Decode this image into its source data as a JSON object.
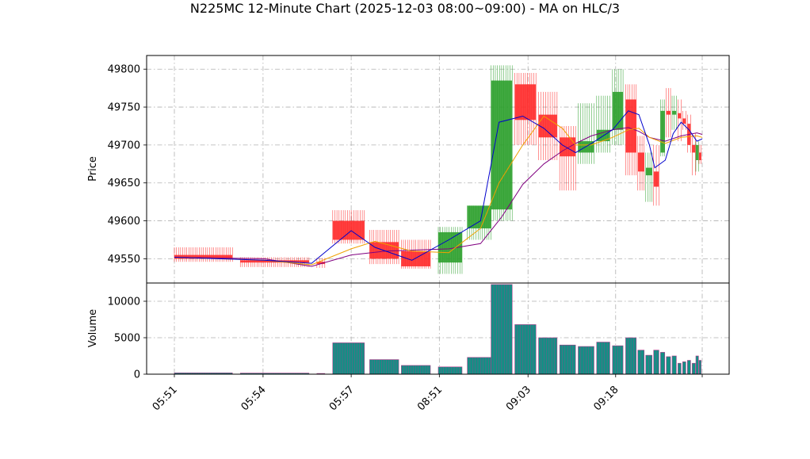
{
  "chart_data": {
    "type": "candlestick",
    "title": "N225MC 12-Minute Chart (2025-12-03 08:00~09:00) - MA on HLC/3",
    "price_panel": {
      "ylabel": "Price",
      "yticks": [
        49550,
        49600,
        49650,
        49700,
        49750,
        49800
      ],
      "ylim": [
        49518,
        49818
      ],
      "grid": true
    },
    "volume_panel": {
      "ylabel": "Volume",
      "yticks": [
        0,
        5000,
        10000
      ],
      "ylim": [
        0,
        12500
      ],
      "grid": true
    },
    "xaxis": {
      "ticks": [
        "05:51",
        "05:54",
        "05:57",
        "08:51",
        "09:03",
        "09:18",
        ""
      ]
    },
    "colors": {
      "up": "#2ca02c",
      "down": "#ff2a2a",
      "volume": "#138f85",
      "volume_edge": "#b03b8a",
      "ma_fast": "#0000cc",
      "ma_mid": "#f0a000",
      "ma_slow": "#800080"
    },
    "candles": [
      {
        "x": 0.0,
        "w": 0.11,
        "o": 49555,
        "h": 49565,
        "l": 49546,
        "c": 49550,
        "v": 180
      },
      {
        "x": 0.125,
        "w": 0.13,
        "o": 49548,
        "h": 49552,
        "l": 49539,
        "c": 49545,
        "v": 150
      },
      {
        "x": 0.27,
        "w": 0.015,
        "o": 49546,
        "h": 49551,
        "l": 49538,
        "c": 49543,
        "v": 100
      },
      {
        "x": 0.3,
        "w": 0.06,
        "o": 49600,
        "h": 49614,
        "l": 49570,
        "c": 49575,
        "v": 4300
      },
      {
        "x": 0.37,
        "w": 0.055,
        "o": 49572,
        "h": 49588,
        "l": 49543,
        "c": 49550,
        "v": 2000
      },
      {
        "x": 0.43,
        "w": 0.055,
        "o": 49560,
        "h": 49575,
        "l": 49537,
        "c": 49540,
        "v": 1200
      },
      {
        "x": 0.5,
        "w": 0.045,
        "o": 49545,
        "h": 49592,
        "l": 49530,
        "c": 49585,
        "v": 1000
      },
      {
        "x": 0.555,
        "w": 0.045,
        "o": 49590,
        "h": 49620,
        "l": 49575,
        "c": 49620,
        "v": 2300
      },
      {
        "x": 0.6,
        "w": 0.04,
        "o": 49615,
        "h": 49805,
        "l": 49600,
        "c": 49785,
        "v": 12300
      },
      {
        "x": 0.645,
        "w": 0.04,
        "o": 49780,
        "h": 49795,
        "l": 49700,
        "c": 49733,
        "v": 6800
      },
      {
        "x": 0.69,
        "w": 0.035,
        "o": 49740,
        "h": 49770,
        "l": 49680,
        "c": 49710,
        "v": 5000
      },
      {
        "x": 0.73,
        "w": 0.03,
        "o": 49710,
        "h": 49725,
        "l": 49640,
        "c": 49685,
        "v": 4000
      },
      {
        "x": 0.765,
        "w": 0.03,
        "o": 49690,
        "h": 49755,
        "l": 49675,
        "c": 49705,
        "v": 3800
      },
      {
        "x": 0.8,
        "w": 0.025,
        "o": 49705,
        "h": 49765,
        "l": 49690,
        "c": 49720,
        "v": 4400
      },
      {
        "x": 0.83,
        "w": 0.02,
        "o": 49720,
        "h": 49800,
        "l": 49700,
        "c": 49770,
        "v": 3900
      },
      {
        "x": 0.855,
        "w": 0.02,
        "o": 49760,
        "h": 49780,
        "l": 49660,
        "c": 49690,
        "v": 5000
      },
      {
        "x": 0.878,
        "w": 0.012,
        "o": 49690,
        "h": 49712,
        "l": 49640,
        "c": 49665,
        "v": 3300
      },
      {
        "x": 0.893,
        "w": 0.012,
        "o": 49660,
        "h": 49690,
        "l": 49625,
        "c": 49670,
        "v": 2600
      },
      {
        "x": 0.908,
        "w": 0.01,
        "o": 49665,
        "h": 49700,
        "l": 49620,
        "c": 49645,
        "v": 3300
      },
      {
        "x": 0.921,
        "w": 0.008,
        "o": 49690,
        "h": 49760,
        "l": 49685,
        "c": 49745,
        "v": 3000
      },
      {
        "x": 0.932,
        "w": 0.008,
        "o": 49745,
        "h": 49775,
        "l": 49710,
        "c": 49740,
        "v": 2400
      },
      {
        "x": 0.943,
        "w": 0.008,
        "o": 49740,
        "h": 49765,
        "l": 49720,
        "c": 49745,
        "v": 2500
      },
      {
        "x": 0.954,
        "w": 0.006,
        "o": 49742,
        "h": 49760,
        "l": 49705,
        "c": 49735,
        "v": 1500
      },
      {
        "x": 0.963,
        "w": 0.006,
        "o": 49735,
        "h": 49745,
        "l": 49720,
        "c": 49728,
        "v": 1700
      },
      {
        "x": 0.972,
        "w": 0.006,
        "o": 49728,
        "h": 49740,
        "l": 49690,
        "c": 49700,
        "v": 1900
      },
      {
        "x": 0.981,
        "w": 0.006,
        "o": 49700,
        "h": 49715,
        "l": 49660,
        "c": 49690,
        "v": 1500
      },
      {
        "x": 0.988,
        "w": 0.005,
        "o": 49680,
        "h": 49705,
        "l": 49665,
        "c": 49700,
        "v": 2500
      },
      {
        "x": 0.994,
        "w": 0.004,
        "o": 49690,
        "h": 49700,
        "l": 49675,
        "c": 49680,
        "v": 1900
      }
    ],
    "ma_fast": [
      [
        0.0,
        49552
      ],
      [
        0.17,
        49548
      ],
      [
        0.26,
        49544
      ],
      [
        0.335,
        49587
      ],
      [
        0.38,
        49565
      ],
      [
        0.45,
        49548
      ],
      [
        0.52,
        49575
      ],
      [
        0.58,
        49600
      ],
      [
        0.615,
        49730
      ],
      [
        0.66,
        49738
      ],
      [
        0.7,
        49722
      ],
      [
        0.735,
        49700
      ],
      [
        0.76,
        49690
      ],
      [
        0.79,
        49702
      ],
      [
        0.83,
        49720
      ],
      [
        0.86,
        49745
      ],
      [
        0.88,
        49740
      ],
      [
        0.9,
        49700
      ],
      [
        0.91,
        49670
      ],
      [
        0.93,
        49680
      ],
      [
        0.945,
        49715
      ],
      [
        0.96,
        49730
      ],
      [
        0.975,
        49720
      ],
      [
        0.99,
        49705
      ],
      [
        1.0,
        49708
      ]
    ],
    "ma_mid": [
      [
        0.0,
        49552
      ],
      [
        0.17,
        49548
      ],
      [
        0.26,
        49542
      ],
      [
        0.335,
        49563
      ],
      [
        0.38,
        49573
      ],
      [
        0.45,
        49560
      ],
      [
        0.52,
        49558
      ],
      [
        0.58,
        49590
      ],
      [
        0.615,
        49650
      ],
      [
        0.66,
        49700
      ],
      [
        0.7,
        49738
      ],
      [
        0.735,
        49722
      ],
      [
        0.76,
        49700
      ],
      [
        0.79,
        49700
      ],
      [
        0.83,
        49710
      ],
      [
        0.86,
        49720
      ],
      [
        0.88,
        49722
      ],
      [
        0.9,
        49710
      ],
      [
        0.93,
        49702
      ],
      [
        0.96,
        49710
      ],
      [
        0.99,
        49712
      ],
      [
        1.0,
        49710
      ]
    ],
    "ma_slow": [
      [
        0.0,
        49552
      ],
      [
        0.17,
        49550
      ],
      [
        0.26,
        49540
      ],
      [
        0.335,
        49555
      ],
      [
        0.4,
        49560
      ],
      [
        0.52,
        49563
      ],
      [
        0.58,
        49570
      ],
      [
        0.62,
        49605
      ],
      [
        0.66,
        49648
      ],
      [
        0.7,
        49675
      ],
      [
        0.735,
        49692
      ],
      [
        0.76,
        49702
      ],
      [
        0.79,
        49712
      ],
      [
        0.83,
        49720
      ],
      [
        0.86,
        49723
      ],
      [
        0.88,
        49718
      ],
      [
        0.9,
        49710
      ],
      [
        0.93,
        49705
      ],
      [
        0.96,
        49712
      ],
      [
        0.99,
        49716
      ],
      [
        1.0,
        49714
      ]
    ]
  }
}
